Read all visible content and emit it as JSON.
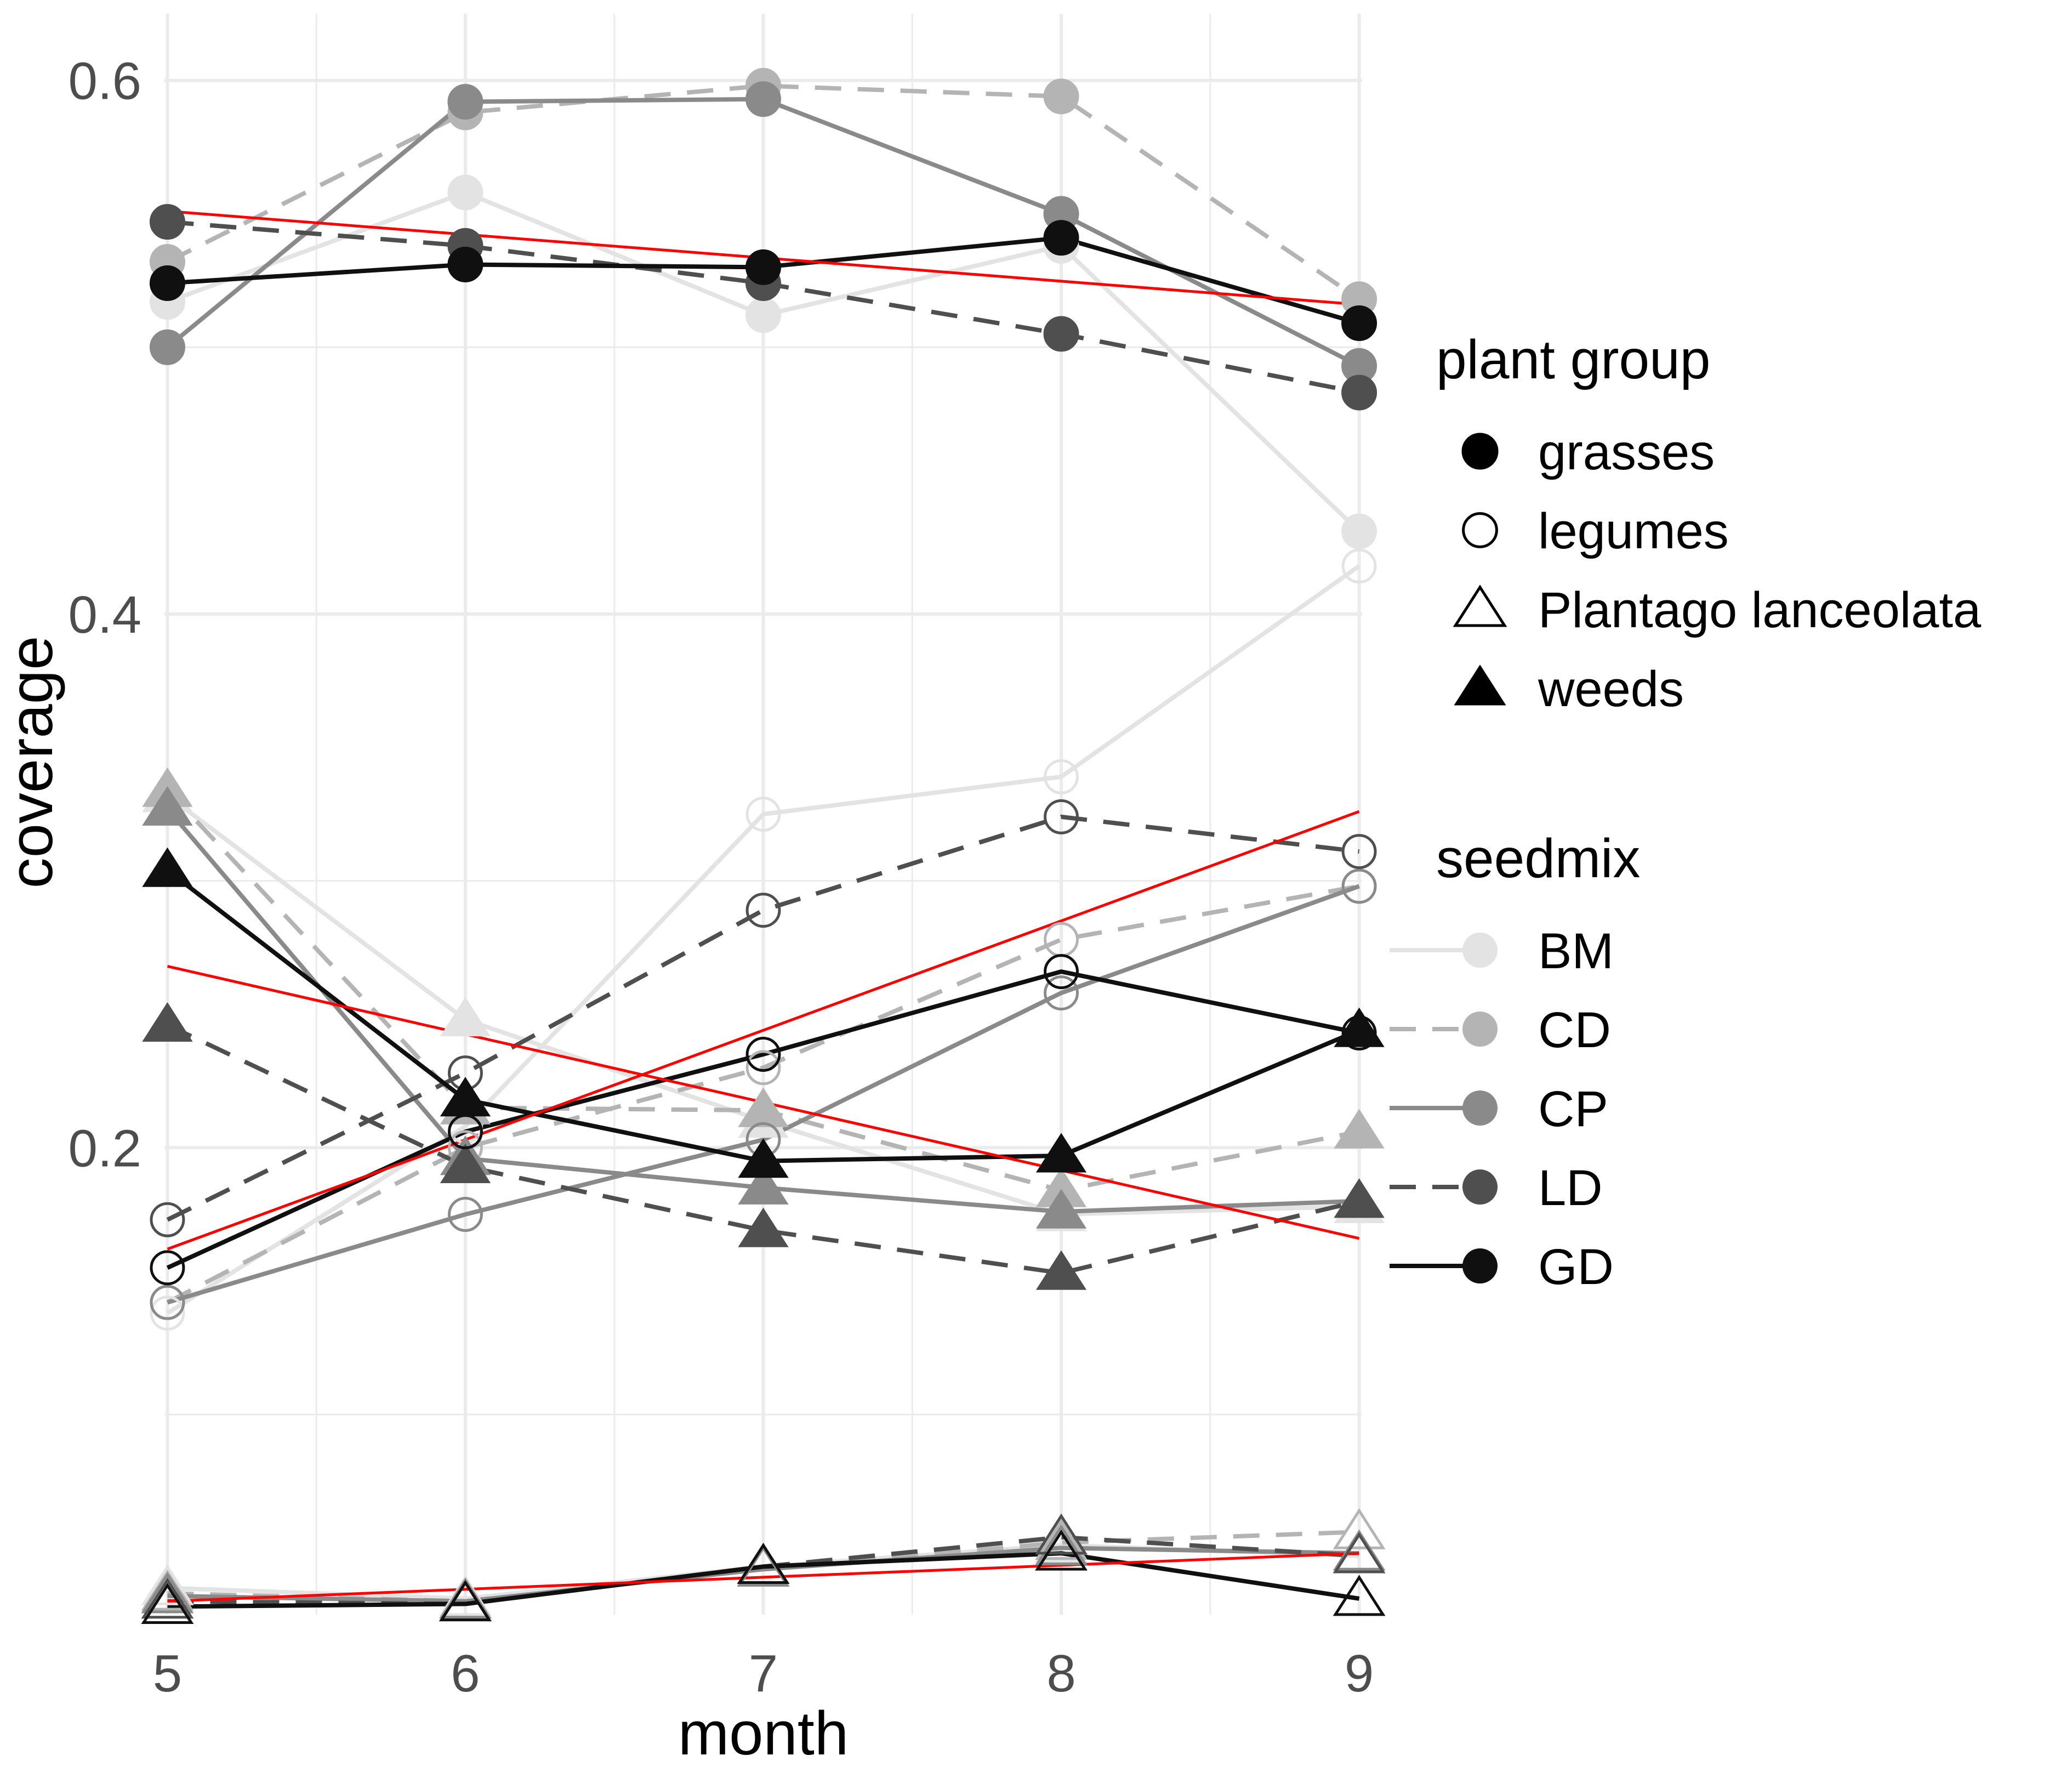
{
  "chart_data": {
    "type": "line",
    "xlabel": "month",
    "ylabel": "coverage",
    "x": [
      5,
      6,
      7,
      8,
      9
    ],
    "xlim": [
      4.99,
      9.01
    ],
    "ylim": [
      0.025,
      0.625
    ],
    "x_ticks": [
      5,
      6,
      7,
      8,
      9
    ],
    "y_ticks": [
      0.2,
      0.4,
      0.6
    ],
    "y_tick_labels": [
      "0.2",
      "0.4",
      "0.6"
    ],
    "grid": true,
    "legend_position": "right",
    "series": [
      {
        "name": "BM grasses",
        "seedmix": "BM",
        "group": "grasses",
        "values": [
          0.517,
          0.558,
          0.512,
          0.538,
          0.431
        ]
      },
      {
        "name": "CD grasses",
        "seedmix": "CD",
        "group": "grasses",
        "values": [
          0.532,
          0.588,
          0.598,
          0.594,
          0.518
        ]
      },
      {
        "name": "CP grasses",
        "seedmix": "CP",
        "group": "grasses",
        "values": [
          0.5,
          0.592,
          0.593,
          0.55,
          0.493
        ]
      },
      {
        "name": "LD grasses",
        "seedmix": "LD",
        "group": "grasses",
        "values": [
          0.547,
          0.538,
          0.524,
          0.505,
          0.483
        ]
      },
      {
        "name": "GD grasses",
        "seedmix": "GD",
        "group": "grasses",
        "values": [
          0.524,
          0.531,
          0.53,
          0.541,
          0.509
        ]
      },
      {
        "name": "BM legumes",
        "seedmix": "BM",
        "group": "legumes",
        "values": [
          0.138,
          0.208,
          0.325,
          0.339,
          0.418
        ]
      },
      {
        "name": "CD legumes",
        "seedmix": "CD",
        "group": "legumes",
        "values": [
          0.142,
          0.2,
          0.23,
          0.278,
          0.298
        ]
      },
      {
        "name": "CP legumes",
        "seedmix": "CP",
        "group": "legumes",
        "values": [
          0.142,
          0.175,
          0.203,
          0.258,
          0.298
        ]
      },
      {
        "name": "LD legumes",
        "seedmix": "LD",
        "group": "legumes",
        "values": [
          0.173,
          0.228,
          0.289,
          0.324,
          0.311
        ]
      },
      {
        "name": "GD legumes",
        "seedmix": "GD",
        "group": "legumes",
        "values": [
          0.155,
          0.206,
          0.235,
          0.266,
          0.243
        ]
      },
      {
        "name": "BM Plantago lanceolata",
        "seedmix": "BM",
        "group": "Plantago lanceolata",
        "values": [
          0.035,
          0.031,
          0.043,
          0.051,
          0.047
        ]
      },
      {
        "name": "CD Plantago lanceolata",
        "seedmix": "CD",
        "group": "Plantago lanceolata",
        "values": [
          0.033,
          0.03,
          0.042,
          0.052,
          0.056
        ]
      },
      {
        "name": "CP Plantago lanceolata",
        "seedmix": "CP",
        "group": "Plantago lanceolata",
        "values": [
          0.032,
          0.03,
          0.042,
          0.05,
          0.048
        ]
      },
      {
        "name": "LD Plantago lanceolata",
        "seedmix": "LD",
        "group": "Plantago lanceolata",
        "values": [
          0.03,
          0.029,
          0.043,
          0.054,
          0.047
        ]
      },
      {
        "name": "GD Plantago lanceolata",
        "seedmix": "GD",
        "group": "Plantago lanceolata",
        "values": [
          0.028,
          0.029,
          0.043,
          0.048,
          0.031
        ]
      },
      {
        "name": "BM weeds",
        "seedmix": "BM",
        "group": "weeds",
        "values": [
          0.332,
          0.248,
          0.21,
          0.175,
          0.178
        ]
      },
      {
        "name": "CD weeds",
        "seedmix": "CD",
        "group": "weeds",
        "values": [
          0.334,
          0.215,
          0.214,
          0.184,
          0.206
        ]
      },
      {
        "name": "CP weeds",
        "seedmix": "CP",
        "group": "weeds",
        "values": [
          0.327,
          0.196,
          0.185,
          0.176,
          0.18
        ]
      },
      {
        "name": "LD weeds",
        "seedmix": "LD",
        "group": "weeds",
        "values": [
          0.246,
          0.193,
          0.169,
          0.153,
          0.18
        ]
      },
      {
        "name": "GD weeds",
        "seedmix": "GD",
        "group": "weeds",
        "values": [
          0.304,
          0.218,
          0.195,
          0.197,
          0.244
        ]
      }
    ],
    "trend_lines": [
      {
        "group": "grasses",
        "values": [
          0.551,
          0.516
        ]
      },
      {
        "group": "legumes",
        "values": [
          0.162,
          0.326
        ]
      },
      {
        "group": "Plantago lanceolata",
        "values": [
          0.03,
          0.048
        ]
      },
      {
        "group": "weeds",
        "values": [
          0.268,
          0.166
        ]
      }
    ],
    "legend_shape": {
      "title": "plant group",
      "entries": [
        {
          "label": "grasses",
          "shape": "filled-circle"
        },
        {
          "label": "legumes",
          "shape": "open-circle"
        },
        {
          "label": "Plantago lanceolata",
          "shape": "open-triangle"
        },
        {
          "label": "weeds",
          "shape": "filled-triangle"
        }
      ]
    },
    "legend_seedmix": {
      "title": "seedmix",
      "entries": [
        {
          "label": "BM",
          "color": "#e3e3e3",
          "dashed": false
        },
        {
          "label": "CD",
          "color": "#b4b4b4",
          "dashed": true
        },
        {
          "label": "CP",
          "color": "#8a8a8a",
          "dashed": false
        },
        {
          "label": "LD",
          "color": "#4f4f4f",
          "dashed": true
        },
        {
          "label": "GD",
          "color": "#101010",
          "dashed": false
        }
      ]
    },
    "trend_color": "#ff0000"
  }
}
